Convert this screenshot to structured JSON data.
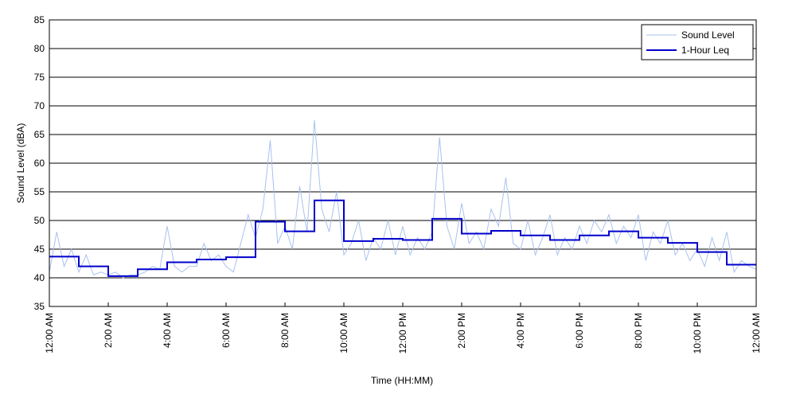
{
  "chart_data": {
    "type": "line",
    "x_label": "Time (HH:MM)",
    "y_label": "Sound Level (dBA)",
    "xlim": [
      0,
      24
    ],
    "ylim": [
      35,
      85
    ],
    "yticks": [
      35,
      40,
      45,
      50,
      55,
      60,
      65,
      70,
      75,
      80,
      85
    ],
    "xticks": [
      {
        "value": 0,
        "label": "12:00 AM"
      },
      {
        "value": 2,
        "label": "2:00 AM"
      },
      {
        "value": 4,
        "label": "4:00 AM"
      },
      {
        "value": 6,
        "label": "6:00 AM"
      },
      {
        "value": 8,
        "label": "8:00 AM"
      },
      {
        "value": 10,
        "label": "10:00 AM"
      },
      {
        "value": 12,
        "label": "12:00 PM"
      },
      {
        "value": 14,
        "label": "2:00 PM"
      },
      {
        "value": 16,
        "label": "4:00 PM"
      },
      {
        "value": 18,
        "label": "6:00 PM"
      },
      {
        "value": 20,
        "label": "8:00 PM"
      },
      {
        "value": 22,
        "label": "10:00 PM"
      },
      {
        "value": 24,
        "label": "12:00 AM"
      }
    ],
    "grid": true,
    "legend": "top-right",
    "series": [
      {
        "name": "Sound Level",
        "color": "#a9c1f0",
        "width": 1,
        "x": [
          0,
          0.25,
          0.5,
          0.75,
          1,
          1.25,
          1.5,
          1.75,
          2,
          2.25,
          2.5,
          2.75,
          3,
          3.25,
          3.5,
          3.75,
          4,
          4.25,
          4.5,
          4.75,
          5,
          5.25,
          5.5,
          5.75,
          6,
          6.25,
          6.5,
          6.75,
          7,
          7.25,
          7.5,
          7.75,
          8,
          8.25,
          8.5,
          8.75,
          9,
          9.25,
          9.5,
          9.75,
          10,
          10.25,
          10.5,
          10.75,
          11,
          11.25,
          11.5,
          11.75,
          12,
          12.25,
          12.5,
          12.75,
          13,
          13.25,
          13.5,
          13.75,
          14,
          14.25,
          14.5,
          14.75,
          15,
          15.25,
          15.5,
          15.75,
          16,
          16.25,
          16.5,
          16.75,
          17,
          17.25,
          17.5,
          17.75,
          18,
          18.25,
          18.5,
          18.75,
          19,
          19.25,
          19.5,
          19.75,
          20,
          20.25,
          20.5,
          20.75,
          21,
          21.25,
          21.5,
          21.75,
          22,
          22.25,
          22.5,
          22.75,
          23,
          23.25,
          23.5,
          23.75,
          24
        ],
        "values": [
          41,
          48,
          42,
          45,
          41,
          44,
          40.5,
          41,
          40.5,
          41,
          40,
          40.5,
          40.5,
          41,
          42,
          41.5,
          49,
          42,
          41,
          42,
          42,
          46,
          43,
          44,
          42,
          41,
          46,
          51,
          47,
          52,
          64,
          46,
          49,
          45,
          56,
          48,
          67.5,
          52,
          48,
          55,
          44,
          46,
          50,
          43,
          47,
          45,
          50,
          44,
          49,
          44,
          47,
          45,
          48,
          64.5,
          49,
          45,
          53,
          46,
          48,
          45,
          52,
          49,
          57.5,
          46,
          45,
          50,
          44,
          47,
          51,
          44,
          47,
          45,
          49,
          46,
          50,
          48,
          51,
          46,
          49,
          47,
          51,
          43,
          48,
          46,
          50,
          44,
          46,
          43,
          45,
          42,
          47,
          43,
          48,
          41,
          43,
          42,
          41.5
        ]
      },
      {
        "name": "1-Hour Leq",
        "color": "#0000cc",
        "width": 2,
        "step": true,
        "x": [
          0,
          1,
          2,
          3,
          4,
          5,
          6,
          7,
          8,
          9,
          10,
          11,
          12,
          13,
          14,
          15,
          16,
          17,
          18,
          19,
          20,
          21,
          22,
          23
        ],
        "values": [
          43.7,
          42.0,
          40.3,
          41.5,
          42.7,
          43.2,
          43.6,
          49.8,
          48.1,
          53.5,
          46.4,
          46.8,
          46.6,
          50.3,
          47.7,
          48.2,
          47.4,
          46.6,
          47.4,
          48.1,
          47.0,
          46.1,
          44.5,
          42.3
        ]
      }
    ]
  }
}
